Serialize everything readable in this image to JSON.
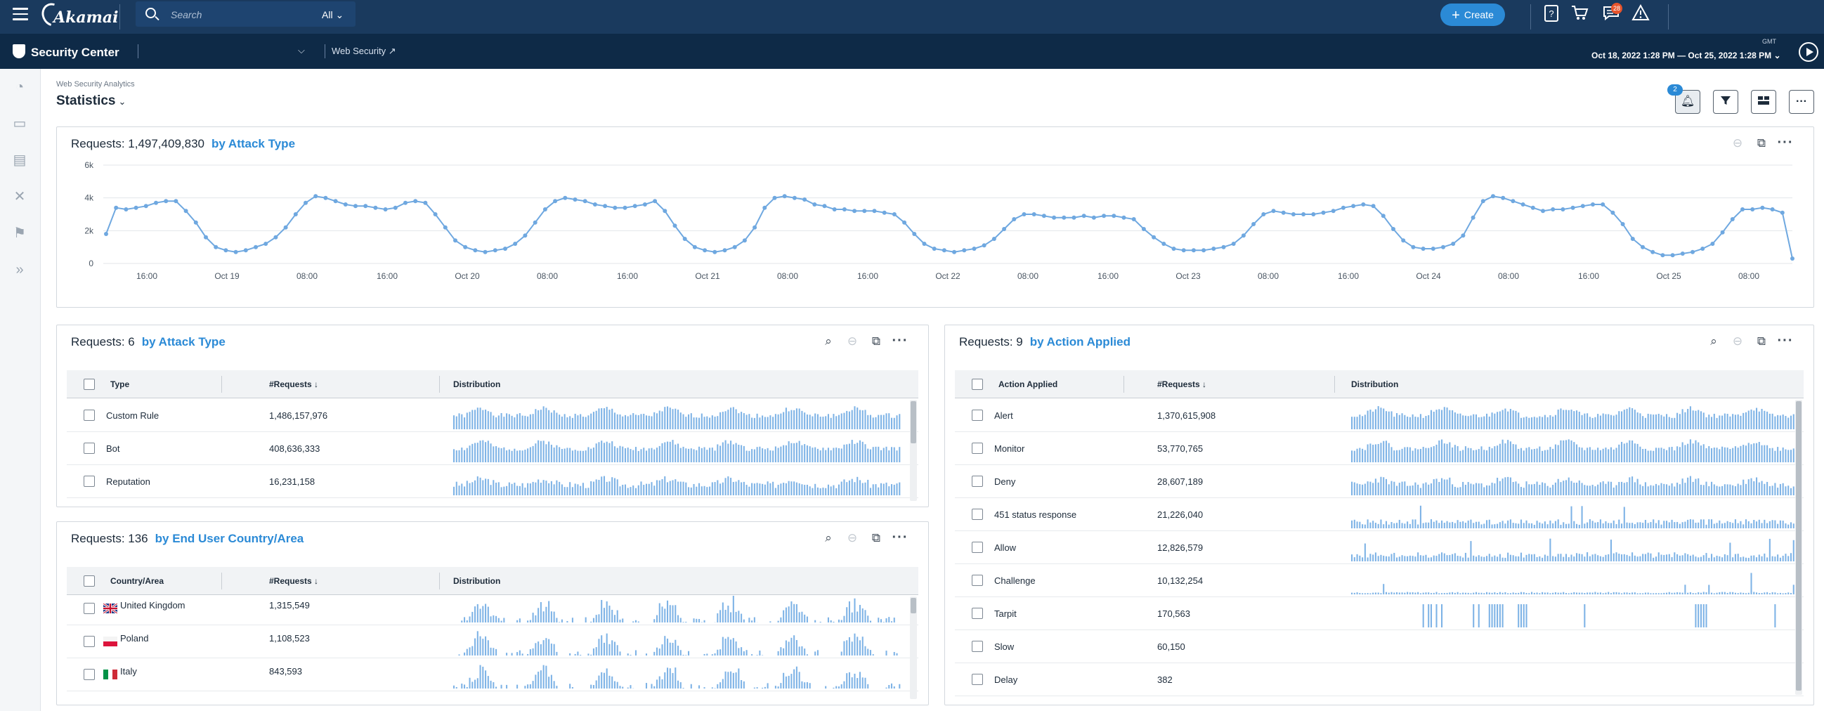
{
  "topbar": {
    "logo": "Akamai",
    "search_placeholder": "Search",
    "search_scope": "All",
    "create_label": "Create",
    "messages_badge": "28",
    "icons": [
      "help-icon",
      "cart-icon",
      "chat-icon",
      "alert-icon"
    ]
  },
  "subbar": {
    "app_title": "Security Center",
    "context_chevron": "⌵",
    "link_label": "Web Security",
    "timezone": "GMT",
    "date_range": "Oct 18, 2022  1:28 PM — Oct 25, 2022  1:28 PM"
  },
  "page": {
    "breadcrumb": "Web Security Analytics",
    "title": "Statistics",
    "notifications_badge": "2"
  },
  "main_chart_panel": {
    "requests_label": "Requests: 1,497,409,830",
    "by_label": "by Attack Type"
  },
  "chart_data": {
    "type": "line",
    "yticks": [
      "6k",
      "4k",
      "2k",
      "0"
    ],
    "ylim": [
      0,
      6000
    ],
    "xtick_labels": [
      "16:00",
      "Oct 19",
      "08:00",
      "16:00",
      "Oct 20",
      "08:00",
      "16:00",
      "Oct 21",
      "08:00",
      "16:00",
      "Oct 22",
      "08:00",
      "16:00",
      "Oct 23",
      "08:00",
      "16:00",
      "Oct 24",
      "08:00",
      "16:00",
      "Oct 25",
      "08:00"
    ],
    "color": "#6fa8e0",
    "series": [
      {
        "values": [
          1800,
          3400,
          3300,
          3400,
          3500,
          3700,
          3800,
          3800,
          3200,
          2500,
          1600,
          1000,
          800,
          700,
          800,
          1000,
          1200,
          1600,
          2200,
          3000,
          3700,
          4100,
          4000,
          3800,
          3600,
          3500,
          3500,
          3400,
          3300,
          3400,
          3700,
          3800,
          3700,
          3000,
          2200,
          1400,
          1000,
          800,
          700,
          800,
          900,
          1200,
          1700,
          2500,
          3300,
          3800,
          4000,
          3900,
          3800,
          3600,
          3500,
          3400,
          3400,
          3500,
          3600,
          3800,
          3200,
          2300,
          1500,
          1000,
          800,
          700,
          800,
          1000,
          1400,
          2200,
          3400,
          4000,
          4100,
          4000,
          3900,
          3600,
          3500,
          3300,
          3300,
          3200,
          3200,
          3200,
          3100,
          3000,
          2500,
          1800,
          1200,
          900,
          800,
          700,
          800,
          900,
          1100,
          1500,
          2100,
          2700,
          3000,
          3000,
          2900,
          2800,
          2800,
          2800,
          2900,
          2800,
          2900,
          2900,
          2800,
          2700,
          2100,
          1600,
          1200,
          900,
          800,
          800,
          800,
          900,
          1000,
          1200,
          1700,
          2400,
          3000,
          3200,
          3100,
          3000,
          3000,
          3000,
          3100,
          3200,
          3400,
          3500,
          3600,
          3500,
          2900,
          2100,
          1400,
          1000,
          900,
          900,
          1000,
          1200,
          1700,
          2800,
          3800,
          4100,
          4000,
          3800,
          3600,
          3400,
          3200,
          3300,
          3300,
          3400,
          3500,
          3600,
          3600,
          3100,
          2400,
          1500,
          1000,
          700,
          500,
          500,
          600,
          700,
          900,
          1200,
          1900,
          2700,
          3300,
          3300,
          3400,
          3300,
          3100,
          300
        ]
      }
    ]
  },
  "panel_attack": {
    "requests_label": "Requests: 6",
    "by_label": "by Attack Type",
    "columns": [
      "Type",
      "#Requests",
      "Distribution"
    ],
    "rows": [
      {
        "name": "Custom Rule",
        "value": "1,486,157,976",
        "seed": 1,
        "mode": "full"
      },
      {
        "name": "Bot",
        "value": "408,636,333",
        "seed": 2,
        "mode": "full"
      },
      {
        "name": "Reputation",
        "value": "16,231,158",
        "seed": 3,
        "mode": "mid"
      }
    ]
  },
  "panel_country": {
    "requests_label": "Requests: 136",
    "by_label": "by End User Country/Area",
    "columns": [
      "Country/Area",
      "#Requests",
      "Distribution"
    ],
    "rows": [
      {
        "name": "United Kingdom",
        "value": "1,315,549",
        "flag": "uk",
        "seed": 11,
        "mode": "cyclic"
      },
      {
        "name": "Poland",
        "value": "1,108,523",
        "flag": "pl",
        "seed": 12,
        "mode": "cyclic"
      },
      {
        "name": "Italy",
        "value": "843,593",
        "flag": "it",
        "seed": 13,
        "mode": "cyclic"
      }
    ]
  },
  "panel_action": {
    "requests_label": "Requests: 9",
    "by_label": "by Action Applied",
    "columns": [
      "Action Applied",
      "#Requests",
      "Distribution"
    ],
    "rows": [
      {
        "name": "Alert",
        "value": "1,370,615,908",
        "seed": 21,
        "mode": "full"
      },
      {
        "name": "Monitor",
        "value": "53,770,765",
        "seed": 22,
        "mode": "full"
      },
      {
        "name": "Deny",
        "value": "28,607,189",
        "seed": 23,
        "mode": "mid"
      },
      {
        "name": "451 status response",
        "value": "21,226,040",
        "seed": 24,
        "mode": "low"
      },
      {
        "name": "Allow",
        "value": "12,826,579",
        "seed": 25,
        "mode": "low"
      },
      {
        "name": "Challenge",
        "value": "10,132,254",
        "seed": 26,
        "mode": "tiny"
      },
      {
        "name": "Tarpit",
        "value": "170,563",
        "seed": 27,
        "mode": "blocks"
      },
      {
        "name": "Slow",
        "value": "60,150",
        "seed": 28,
        "mode": "none"
      },
      {
        "name": "Delay",
        "value": "382",
        "seed": 29,
        "mode": "none"
      }
    ]
  }
}
